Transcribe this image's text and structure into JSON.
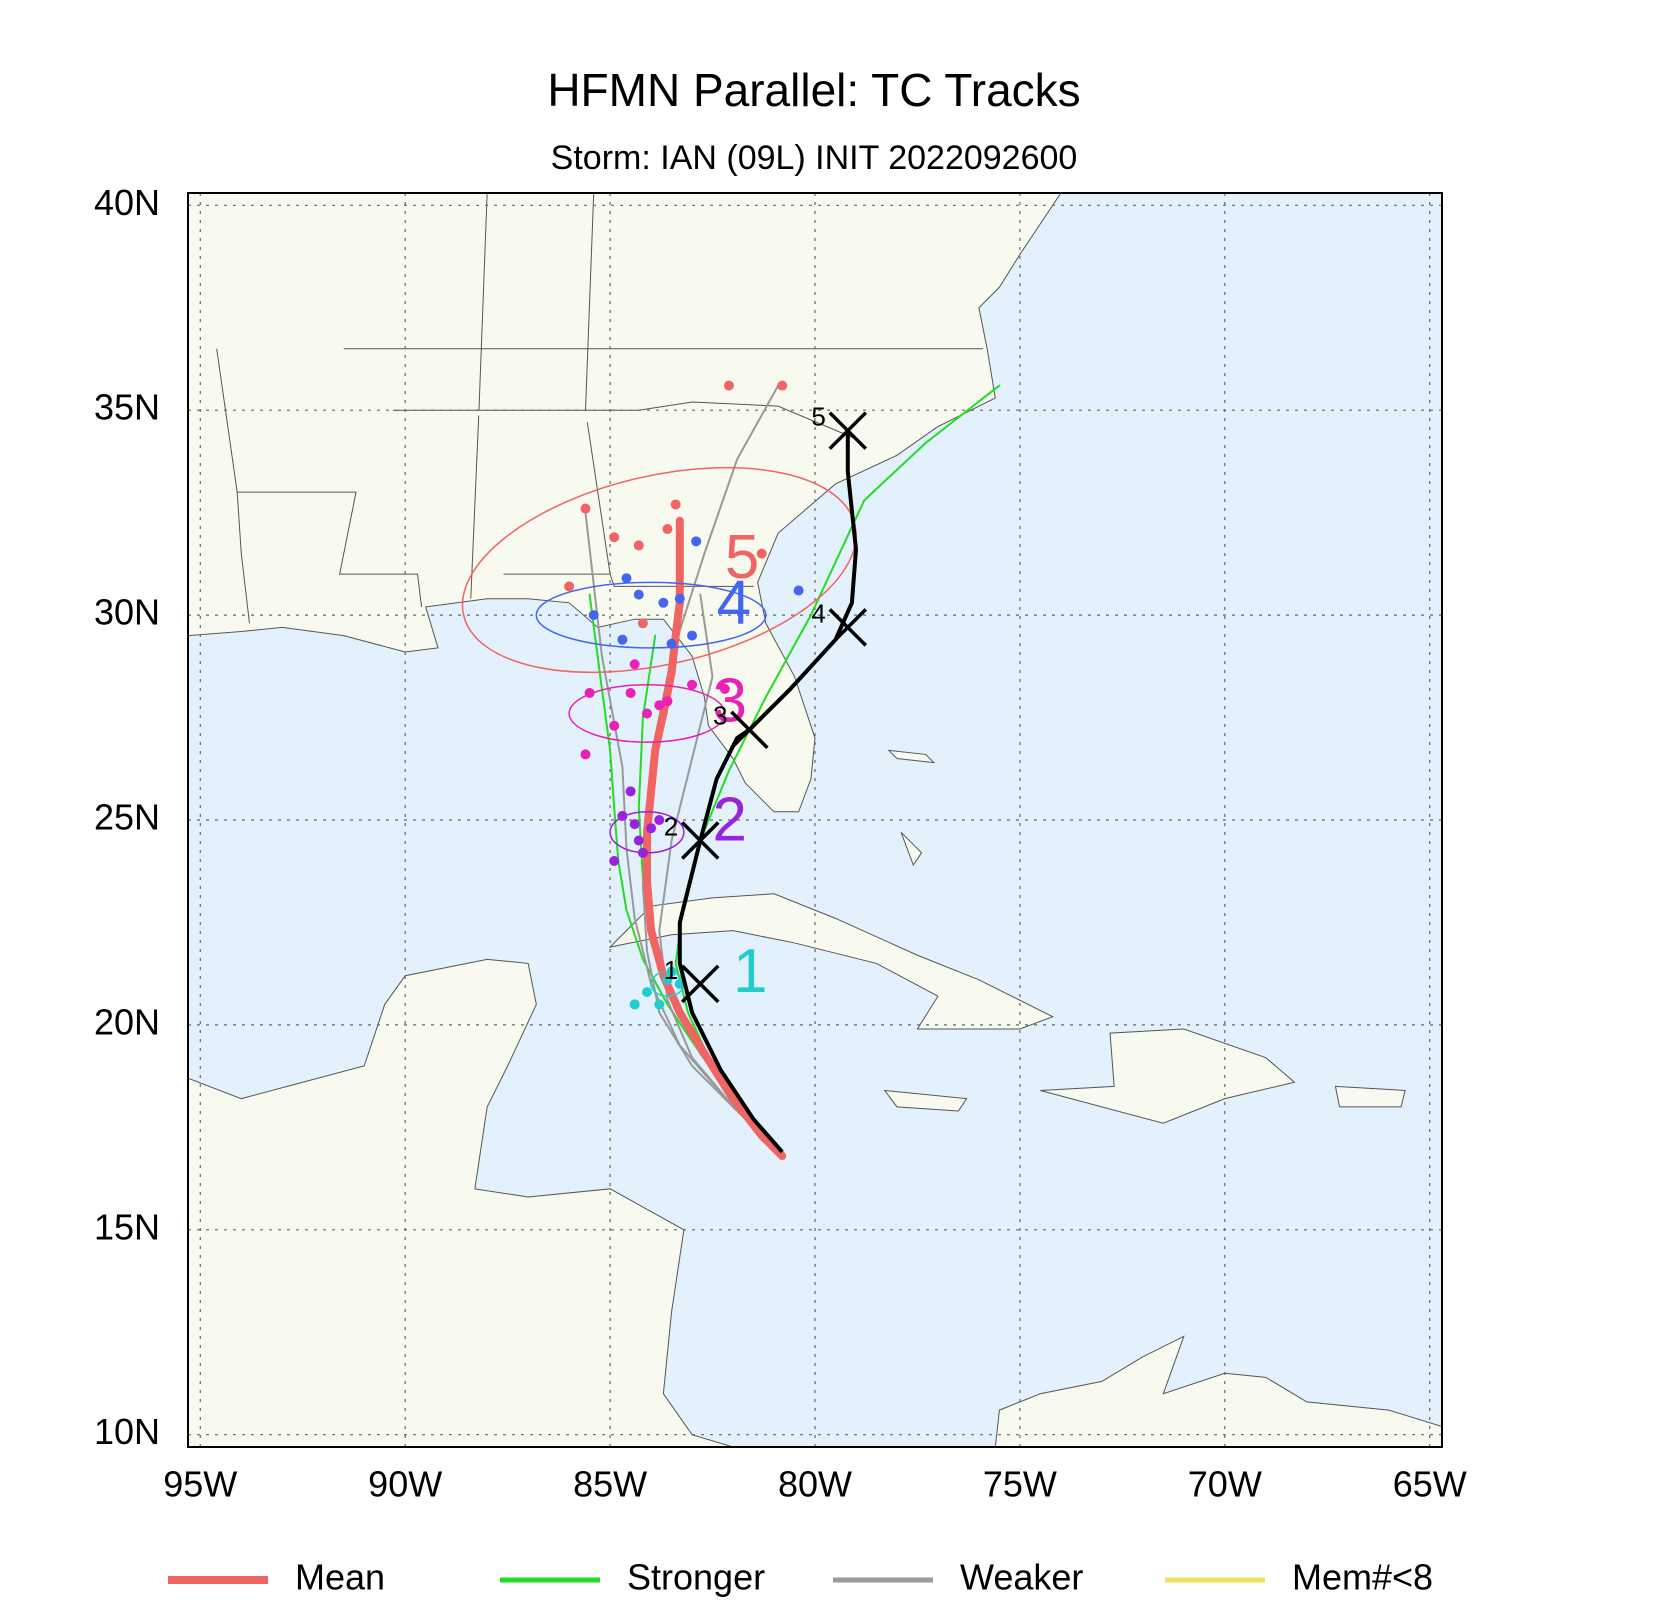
{
  "chart_data": {
    "type": "track-map",
    "title": "HFMN Parallel: TC Tracks",
    "subtitle": "Storm: IAN (09L) INIT 2022092600",
    "xlim": [
      -95.3,
      -64.7
    ],
    "ylim": [
      9.7,
      40.3
    ],
    "xticks": [
      {
        "value": -95,
        "label": "95W"
      },
      {
        "value": -90,
        "label": "90W"
      },
      {
        "value": -85,
        "label": "85W"
      },
      {
        "value": -80,
        "label": "80W"
      },
      {
        "value": -75,
        "label": "75W"
      },
      {
        "value": -70,
        "label": "70W"
      },
      {
        "value": -65,
        "label": "65W"
      }
    ],
    "yticks": [
      {
        "value": 10,
        "label": "10N"
      },
      {
        "value": 15,
        "label": "15N"
      },
      {
        "value": 20,
        "label": "20N"
      },
      {
        "value": 25,
        "label": "25N"
      },
      {
        "value": 30,
        "label": "30N"
      },
      {
        "value": 35,
        "label": "35N"
      },
      {
        "value": 40,
        "label": "40N"
      }
    ],
    "grid": true,
    "series": [
      {
        "name": "Mean",
        "color": "#f06464",
        "tracks": [
          {
            "x": [
              -80.8,
              -81.3,
              -82.0,
              -82.7,
              -83.3,
              -83.7,
              -84.0,
              -84.1,
              -84.1,
              -84.0,
              -83.9,
              -83.7,
              -83.5,
              -83.4,
              -83.3,
              -83.3,
              -83.3
            ],
            "y": [
              16.8,
              17.3,
              18.2,
              19.3,
              20.3,
              21.2,
              22.3,
              23.5,
              24.7,
              25.7,
              26.7,
              27.6,
              28.6,
              29.5,
              30.3,
              31.2,
              32.3
            ]
          }
        ]
      },
      {
        "name": "Stronger",
        "color": "#22dd22",
        "tracks": [
          {
            "x": [
              -80.8,
              -81.5,
              -82.3,
              -83.0,
              -83.6,
              -84.2,
              -84.6,
              -84.8,
              -84.9,
              -85.0,
              -85.2,
              -85.5
            ],
            "y": [
              16.9,
              17.6,
              18.6,
              19.6,
              20.5,
              21.6,
              22.8,
              24.0,
              25.3,
              26.7,
              28.2,
              30.5
            ]
          },
          {
            "x": [
              -80.8,
              -81.6,
              -82.5,
              -83.1,
              -83.4,
              -83.2,
              -82.8,
              -82.1,
              -81.2,
              -80.1,
              -78.8,
              -77.3,
              -75.5
            ],
            "y": [
              16.9,
              17.8,
              19.0,
              20.3,
              21.5,
              23.0,
              24.5,
              26.2,
              28.0,
              30.0,
              32.8,
              34.2,
              35.6
            ]
          },
          {
            "x": [
              -80.8,
              -81.8,
              -82.8,
              -83.5,
              -84.0,
              -84.2,
              -84.3,
              -84.2,
              -83.9
            ],
            "y": [
              16.9,
              18.0,
              19.3,
              20.6,
              22.0,
              23.6,
              25.3,
              27.5,
              29.5
            ]
          }
        ]
      },
      {
        "name": "Weaker",
        "color": "#999999",
        "tracks": [
          {
            "x": [
              -80.8,
              -81.8,
              -83.0,
              -83.8,
              -84.1,
              -84.2,
              -84.1,
              -83.9,
              -83.5,
              -82.7,
              -81.9,
              -80.9
            ],
            "y": [
              16.9,
              17.8,
              19.0,
              20.3,
              21.8,
              23.4,
              25.0,
              27.0,
              29.0,
              31.5,
              33.8,
              35.6
            ]
          },
          {
            "x": [
              -80.8,
              -82.0,
              -83.3,
              -84.0,
              -84.4,
              -84.6,
              -84.7,
              -85.2,
              -85.6
            ],
            "y": [
              16.9,
              18.0,
              19.5,
              21.0,
              22.6,
              24.3,
              26.3,
              29.0,
              32.5
            ]
          },
          {
            "x": [
              -80.8,
              -81.9,
              -83.0,
              -83.6,
              -83.8,
              -83.5,
              -83.0,
              -82.5,
              -82.8
            ],
            "y": [
              16.9,
              17.9,
              19.2,
              20.6,
              22.3,
              24.5,
              26.5,
              28.5,
              30.5
            ]
          }
        ]
      },
      {
        "name": "Mem#<8",
        "color": "#f0e060",
        "tracks": []
      }
    ],
    "official_track": {
      "color": "#000000",
      "x": [
        -80.8,
        -81.5,
        -82.3,
        -83.0,
        -83.3,
        -83.3,
        -83.0,
        -82.8,
        -82.4,
        -81.9,
        -81.6,
        -80.6,
        -79.5,
        -79.1,
        -79.0,
        -79.2,
        -79.2
      ],
      "y": [
        16.9,
        17.7,
        18.9,
        20.3,
        21.5,
        22.5,
        23.7,
        24.5,
        26.0,
        27.0,
        27.2,
        28.2,
        29.4,
        30.3,
        31.6,
        33.5,
        34.5
      ],
      "markers": [
        {
          "label": "1",
          "x": -82.8,
          "y": 21.0
        },
        {
          "label": "2",
          "x": -82.8,
          "y": 24.5
        },
        {
          "label": "3",
          "x": -81.6,
          "y": 27.2
        },
        {
          "label": "4",
          "x": -79.2,
          "y": 29.7
        },
        {
          "label": "5",
          "x": -79.2,
          "y": 34.5
        }
      ]
    },
    "spread": [
      {
        "label": "1",
        "color": "#22cccc",
        "lon": -83.6,
        "lat": 21.0,
        "rx": 0.4,
        "ry": 0.3,
        "angle": 0,
        "members_x": [
          -83.5,
          -84.1,
          -83.8,
          -83.3,
          -84.4,
          -83.6
        ],
        "members_y": [
          21.3,
          20.8,
          20.5,
          21.0,
          20.5,
          21.1
        ]
      },
      {
        "label": "2",
        "color": "#9922dd",
        "lon": -84.1,
        "lat": 24.7,
        "rx": 0.9,
        "ry": 0.5,
        "angle": 0,
        "members_x": [
          -84.4,
          -84.7,
          -84.0,
          -84.2,
          -83.8,
          -84.3,
          -84.9,
          -84.5
        ],
        "members_y": [
          24.9,
          25.1,
          24.8,
          24.2,
          25.0,
          24.5,
          24.0,
          25.7
        ]
      },
      {
        "label": "3",
        "color": "#e822b4",
        "lon": -84.1,
        "lat": 27.6,
        "rx": 1.9,
        "ry": 0.7,
        "angle": 0,
        "members_x": [
          -85.5,
          -84.9,
          -84.5,
          -84.1,
          -83.6,
          -83.0,
          -84.4,
          -85.6,
          -82.2,
          -83.8
        ],
        "members_y": [
          28.1,
          27.3,
          28.1,
          27.6,
          27.9,
          28.3,
          28.8,
          26.6,
          28.2,
          27.8
        ]
      },
      {
        "label": "4",
        "color": "#4466ee",
        "lon": -84.0,
        "lat": 30.0,
        "rx": 2.8,
        "ry": 0.8,
        "angle": 0,
        "members_x": [
          -85.4,
          -84.6,
          -84.3,
          -83.7,
          -83.3,
          -83.0,
          -84.7,
          -80.4,
          -83.5,
          -82.9
        ],
        "members_y": [
          30.0,
          30.9,
          30.5,
          30.3,
          30.4,
          29.5,
          29.4,
          30.6,
          29.3,
          31.8
        ]
      },
      {
        "label": "5",
        "color": "#f06464",
        "lon": -83.8,
        "lat": 31.1,
        "rx": 4.9,
        "ry": 2.3,
        "angle": -13,
        "members_x": [
          -85.6,
          -86.0,
          -84.9,
          -84.3,
          -83.4,
          -81.3,
          -83.6,
          -84.2,
          -80.8,
          -82.1
        ],
        "members_y": [
          32.6,
          30.7,
          31.9,
          31.7,
          32.7,
          31.5,
          32.1,
          29.8,
          35.6,
          35.6
        ]
      }
    ]
  }
}
